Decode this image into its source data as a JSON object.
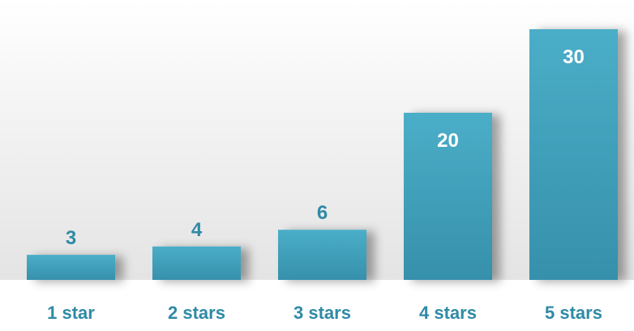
{
  "chart_data": {
    "type": "bar",
    "title": "",
    "xlabel": "",
    "ylabel": "",
    "categories": [
      "1 star",
      "2 stars",
      "3 stars",
      "4 stars",
      "5 stars"
    ],
    "values": [
      3,
      4,
      6,
      20,
      30
    ],
    "data_labels": [
      "3",
      "4",
      "6",
      "20",
      "30"
    ],
    "ylim": [
      0,
      30
    ],
    "grid": false,
    "legend": "none",
    "colors": {
      "bar_top": "#4baec8",
      "bar_bottom": "#3690ab",
      "label_outside": "#2f8aa6",
      "label_inside": "#ffffff",
      "category_text": "#2f8aa6",
      "backdrop": "#e6e6e6"
    }
  }
}
